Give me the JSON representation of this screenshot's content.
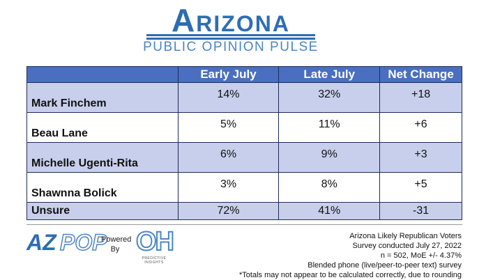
{
  "header": {
    "title": "Arizona",
    "subtitle": "PUBLIC OPINION PULSE"
  },
  "table": {
    "columns": [
      "Early July",
      "Late July",
      "Net Change"
    ],
    "rows": [
      [
        "Mark Finchem",
        "14%",
        "32%",
        "+18"
      ],
      [
        "Beau Lane",
        "5%",
        "11%",
        "+6"
      ],
      [
        "Michelle Ugenti-Rita",
        "6%",
        "9%",
        "+3"
      ],
      [
        "Shawnna Bolick",
        "3%",
        "8%",
        "+5"
      ],
      [
        "Unsure",
        "72%",
        "41%",
        "-31"
      ]
    ]
  },
  "footer": {
    "logo_az": "AZ",
    "logo_pop": "POP",
    "powered_by": "Powered By",
    "logo_oh": "OH",
    "logo_oh_sub": "PREDICTIVE INSIGHTS",
    "notes": [
      "Arizona Likely Republican Voters",
      "Survey conducted July 27, 2022",
      "n = 502, MoE +/- 4.37%",
      "Blended phone (live/peer-to-peer text) survey",
      "*Totals may not appear to be calculated correctly, due to rounding"
    ]
  }
}
